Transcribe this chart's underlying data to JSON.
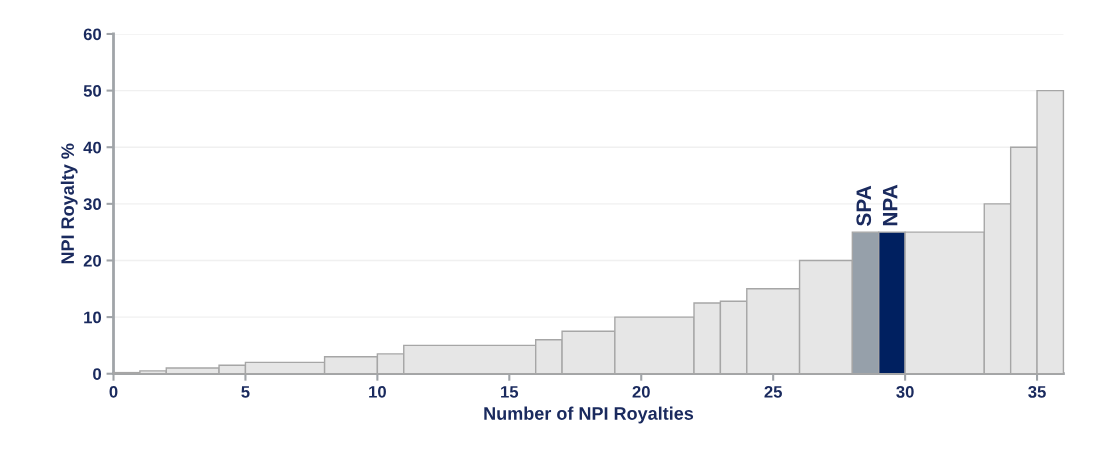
{
  "chart_data": {
    "type": "histogram",
    "xlabel": "Number of NPI Royalties",
    "ylabel": "NPI Royalty %",
    "bins": [
      0,
      1,
      2,
      4,
      5,
      8,
      10,
      11,
      16,
      17,
      19,
      22,
      23,
      24,
      26,
      28,
      29,
      30,
      33,
      34,
      35,
      36
    ],
    "values": [
      0.2,
      0.5,
      1,
      1.5,
      2,
      3,
      3.5,
      5,
      6,
      7.5,
      10,
      12.5,
      12.8,
      15,
      20,
      25,
      25,
      25,
      30,
      40,
      50
    ],
    "colors": [
      "#e6e6e6",
      "#e6e6e6",
      "#e6e6e6",
      "#e6e6e6",
      "#e6e6e6",
      "#e6e6e6",
      "#e6e6e6",
      "#e6e6e6",
      "#e6e6e6",
      "#e6e6e6",
      "#e6e6e6",
      "#e6e6e6",
      "#e6e6e6",
      "#e6e6e6",
      "#e6e6e6",
      "#96a0aa",
      "#002060",
      "#e6e6e6",
      "#e6e6e6",
      "#e6e6e6",
      "#e6e6e6"
    ],
    "annotations": [
      {
        "text": "SPA",
        "x": 28.5,
        "y": 25
      },
      {
        "text": "NPA",
        "x": 29.5,
        "y": 25
      }
    ],
    "xlim": [
      0,
      36
    ],
    "ylim": [
      0,
      60
    ],
    "xticks": [
      0,
      5,
      10,
      15,
      20,
      25,
      30,
      35
    ],
    "yticks": [
      0,
      10,
      20,
      30,
      40,
      50,
      60
    ],
    "grid": "y"
  }
}
